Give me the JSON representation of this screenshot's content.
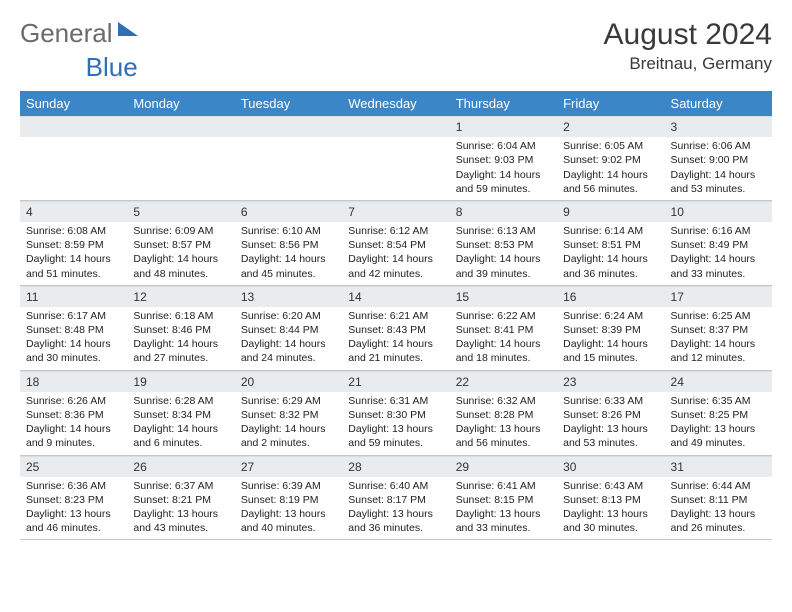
{
  "logo": {
    "text_gray": "General",
    "text_blue": "Blue"
  },
  "title": "August 2024",
  "location": "Breitnau, Germany",
  "colors": {
    "header_bg": "#3b86c6",
    "header_text": "#ffffff",
    "daynum_bg": "#e9ecef",
    "border": "#c7c7c7",
    "logo_gray": "#6b6b6b",
    "logo_blue": "#2e6fb5"
  },
  "day_names": [
    "Sunday",
    "Monday",
    "Tuesday",
    "Wednesday",
    "Thursday",
    "Friday",
    "Saturday"
  ],
  "weeks": [
    [
      {
        "n": "",
        "sr": "",
        "ss": "",
        "dl": ""
      },
      {
        "n": "",
        "sr": "",
        "ss": "",
        "dl": ""
      },
      {
        "n": "",
        "sr": "",
        "ss": "",
        "dl": ""
      },
      {
        "n": "",
        "sr": "",
        "ss": "",
        "dl": ""
      },
      {
        "n": "1",
        "sr": "Sunrise: 6:04 AM",
        "ss": "Sunset: 9:03 PM",
        "dl": "Daylight: 14 hours and 59 minutes."
      },
      {
        "n": "2",
        "sr": "Sunrise: 6:05 AM",
        "ss": "Sunset: 9:02 PM",
        "dl": "Daylight: 14 hours and 56 minutes."
      },
      {
        "n": "3",
        "sr": "Sunrise: 6:06 AM",
        "ss": "Sunset: 9:00 PM",
        "dl": "Daylight: 14 hours and 53 minutes."
      }
    ],
    [
      {
        "n": "4",
        "sr": "Sunrise: 6:08 AM",
        "ss": "Sunset: 8:59 PM",
        "dl": "Daylight: 14 hours and 51 minutes."
      },
      {
        "n": "5",
        "sr": "Sunrise: 6:09 AM",
        "ss": "Sunset: 8:57 PM",
        "dl": "Daylight: 14 hours and 48 minutes."
      },
      {
        "n": "6",
        "sr": "Sunrise: 6:10 AM",
        "ss": "Sunset: 8:56 PM",
        "dl": "Daylight: 14 hours and 45 minutes."
      },
      {
        "n": "7",
        "sr": "Sunrise: 6:12 AM",
        "ss": "Sunset: 8:54 PM",
        "dl": "Daylight: 14 hours and 42 minutes."
      },
      {
        "n": "8",
        "sr": "Sunrise: 6:13 AM",
        "ss": "Sunset: 8:53 PM",
        "dl": "Daylight: 14 hours and 39 minutes."
      },
      {
        "n": "9",
        "sr": "Sunrise: 6:14 AM",
        "ss": "Sunset: 8:51 PM",
        "dl": "Daylight: 14 hours and 36 minutes."
      },
      {
        "n": "10",
        "sr": "Sunrise: 6:16 AM",
        "ss": "Sunset: 8:49 PM",
        "dl": "Daylight: 14 hours and 33 minutes."
      }
    ],
    [
      {
        "n": "11",
        "sr": "Sunrise: 6:17 AM",
        "ss": "Sunset: 8:48 PM",
        "dl": "Daylight: 14 hours and 30 minutes."
      },
      {
        "n": "12",
        "sr": "Sunrise: 6:18 AM",
        "ss": "Sunset: 8:46 PM",
        "dl": "Daylight: 14 hours and 27 minutes."
      },
      {
        "n": "13",
        "sr": "Sunrise: 6:20 AM",
        "ss": "Sunset: 8:44 PM",
        "dl": "Daylight: 14 hours and 24 minutes."
      },
      {
        "n": "14",
        "sr": "Sunrise: 6:21 AM",
        "ss": "Sunset: 8:43 PM",
        "dl": "Daylight: 14 hours and 21 minutes."
      },
      {
        "n": "15",
        "sr": "Sunrise: 6:22 AM",
        "ss": "Sunset: 8:41 PM",
        "dl": "Daylight: 14 hours and 18 minutes."
      },
      {
        "n": "16",
        "sr": "Sunrise: 6:24 AM",
        "ss": "Sunset: 8:39 PM",
        "dl": "Daylight: 14 hours and 15 minutes."
      },
      {
        "n": "17",
        "sr": "Sunrise: 6:25 AM",
        "ss": "Sunset: 8:37 PM",
        "dl": "Daylight: 14 hours and 12 minutes."
      }
    ],
    [
      {
        "n": "18",
        "sr": "Sunrise: 6:26 AM",
        "ss": "Sunset: 8:36 PM",
        "dl": "Daylight: 14 hours and 9 minutes."
      },
      {
        "n": "19",
        "sr": "Sunrise: 6:28 AM",
        "ss": "Sunset: 8:34 PM",
        "dl": "Daylight: 14 hours and 6 minutes."
      },
      {
        "n": "20",
        "sr": "Sunrise: 6:29 AM",
        "ss": "Sunset: 8:32 PM",
        "dl": "Daylight: 14 hours and 2 minutes."
      },
      {
        "n": "21",
        "sr": "Sunrise: 6:31 AM",
        "ss": "Sunset: 8:30 PM",
        "dl": "Daylight: 13 hours and 59 minutes."
      },
      {
        "n": "22",
        "sr": "Sunrise: 6:32 AM",
        "ss": "Sunset: 8:28 PM",
        "dl": "Daylight: 13 hours and 56 minutes."
      },
      {
        "n": "23",
        "sr": "Sunrise: 6:33 AM",
        "ss": "Sunset: 8:26 PM",
        "dl": "Daylight: 13 hours and 53 minutes."
      },
      {
        "n": "24",
        "sr": "Sunrise: 6:35 AM",
        "ss": "Sunset: 8:25 PM",
        "dl": "Daylight: 13 hours and 49 minutes."
      }
    ],
    [
      {
        "n": "25",
        "sr": "Sunrise: 6:36 AM",
        "ss": "Sunset: 8:23 PM",
        "dl": "Daylight: 13 hours and 46 minutes."
      },
      {
        "n": "26",
        "sr": "Sunrise: 6:37 AM",
        "ss": "Sunset: 8:21 PM",
        "dl": "Daylight: 13 hours and 43 minutes."
      },
      {
        "n": "27",
        "sr": "Sunrise: 6:39 AM",
        "ss": "Sunset: 8:19 PM",
        "dl": "Daylight: 13 hours and 40 minutes."
      },
      {
        "n": "28",
        "sr": "Sunrise: 6:40 AM",
        "ss": "Sunset: 8:17 PM",
        "dl": "Daylight: 13 hours and 36 minutes."
      },
      {
        "n": "29",
        "sr": "Sunrise: 6:41 AM",
        "ss": "Sunset: 8:15 PM",
        "dl": "Daylight: 13 hours and 33 minutes."
      },
      {
        "n": "30",
        "sr": "Sunrise: 6:43 AM",
        "ss": "Sunset: 8:13 PM",
        "dl": "Daylight: 13 hours and 30 minutes."
      },
      {
        "n": "31",
        "sr": "Sunrise: 6:44 AM",
        "ss": "Sunset: 8:11 PM",
        "dl": "Daylight: 13 hours and 26 minutes."
      }
    ]
  ]
}
